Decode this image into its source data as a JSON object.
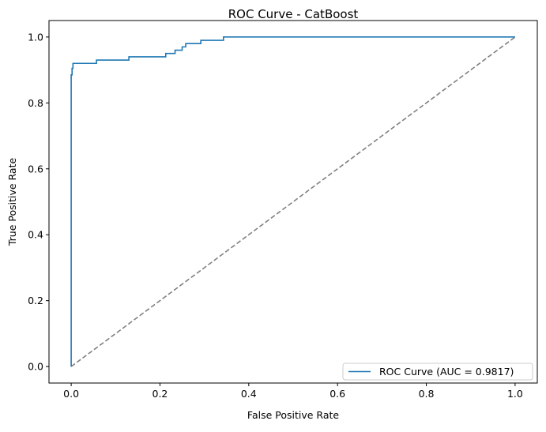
{
  "chart_data": {
    "type": "line",
    "title": "ROC Curve - CatBoost",
    "xlabel": "False Positive Rate",
    "ylabel": "True Positive Rate",
    "xlim": [
      -0.05,
      1.05
    ],
    "ylim": [
      -0.05,
      1.05
    ],
    "xticks": [
      0.0,
      0.2,
      0.4,
      0.6,
      0.8,
      1.0
    ],
    "yticks": [
      0.0,
      0.2,
      0.4,
      0.6,
      0.8,
      1.0
    ],
    "xtick_labels": [
      "0.0",
      "0.2",
      "0.4",
      "0.6",
      "0.8",
      "1.0"
    ],
    "ytick_labels": [
      "0.0",
      "0.2",
      "0.4",
      "0.6",
      "0.8",
      "1.0"
    ],
    "grid": false,
    "legend_position": "lower-right",
    "series": [
      {
        "name": "ROC Curve (AUC = 0.9817)",
        "color": "#1f77b4",
        "style": "solid",
        "x": [
          0.0,
          0.0,
          0.002,
          0.002,
          0.004,
          0.004,
          0.057,
          0.057,
          0.13,
          0.13,
          0.213,
          0.213,
          0.234,
          0.234,
          0.25,
          0.25,
          0.258,
          0.258,
          0.292,
          0.292,
          0.343,
          0.343,
          1.0
        ],
        "y": [
          0.0,
          0.885,
          0.885,
          0.905,
          0.905,
          0.92,
          0.92,
          0.93,
          0.93,
          0.94,
          0.94,
          0.95,
          0.95,
          0.96,
          0.96,
          0.97,
          0.97,
          0.98,
          0.98,
          0.99,
          0.99,
          1.0,
          1.0
        ]
      },
      {
        "name": "",
        "color": "#808080",
        "style": "dashed",
        "x": [
          0.0,
          1.0
        ],
        "y": [
          0.0,
          1.0
        ]
      }
    ]
  }
}
